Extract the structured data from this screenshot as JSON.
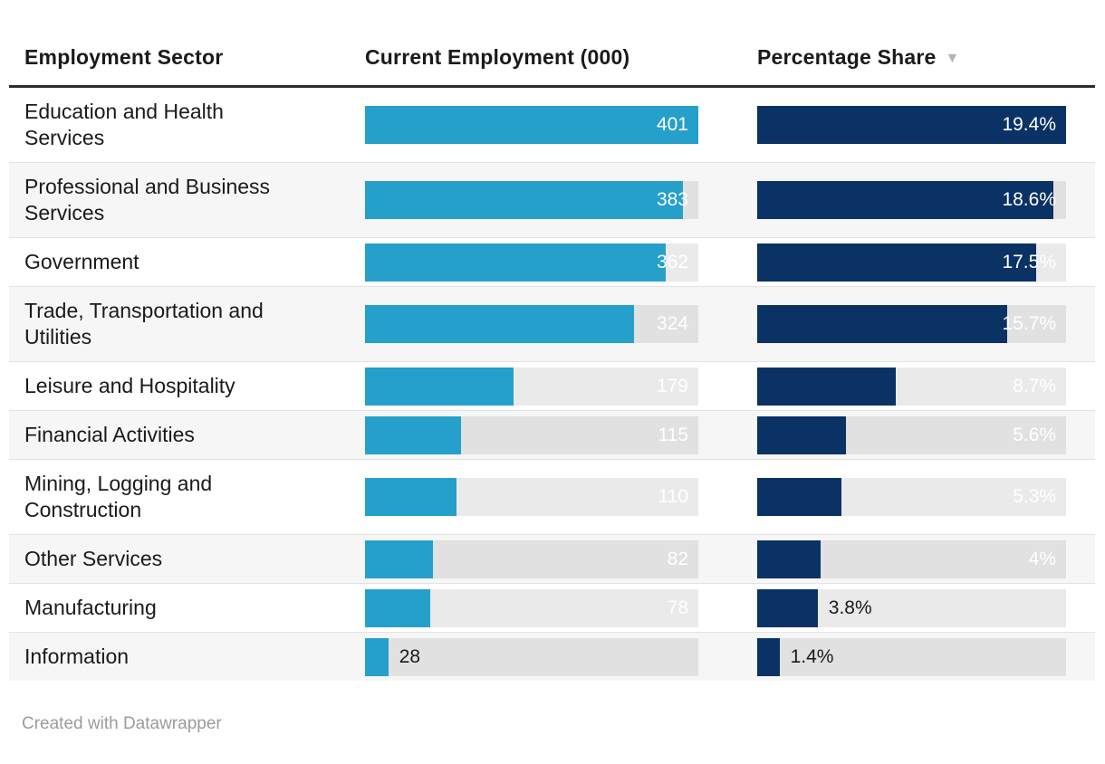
{
  "table": {
    "columns": [
      {
        "label": "Employment Sector"
      },
      {
        "label": "Current Employment (000)"
      },
      {
        "label": "Percentage Share",
        "sort_indicator": "▼",
        "sort_state": "descending"
      }
    ],
    "rows": [
      {
        "sector": "Education and Health Services",
        "employment": 401,
        "employment_label": "401",
        "share": 19.4,
        "share_label": "19.4%"
      },
      {
        "sector": "Professional and Business Services",
        "employment": 383,
        "employment_label": "383",
        "share": 18.6,
        "share_label": "18.6%"
      },
      {
        "sector": "Government",
        "employment": 362,
        "employment_label": "362",
        "share": 17.5,
        "share_label": "17.5%"
      },
      {
        "sector": "Trade, Transportation and Utilities",
        "employment": 324,
        "employment_label": "324",
        "share": 15.7,
        "share_label": "15.7%"
      },
      {
        "sector": "Leisure and Hospitality",
        "employment": 179,
        "employment_label": "179",
        "share": 8.7,
        "share_label": "8.7%"
      },
      {
        "sector": "Financial Activities",
        "employment": 115,
        "employment_label": "115",
        "share": 5.6,
        "share_label": "5.6%"
      },
      {
        "sector": "Mining, Logging and Construction",
        "employment": 110,
        "employment_label": "110",
        "share": 5.3,
        "share_label": "5.3%"
      },
      {
        "sector": "Other Services",
        "employment": 82,
        "employment_label": "82",
        "share": 4,
        "share_label": "4%"
      },
      {
        "sector": "Manufacturing",
        "employment": 78,
        "employment_label": "78",
        "share": 3.8,
        "share_label": "3.8%"
      },
      {
        "sector": "Information",
        "employment": 28,
        "employment_label": "28",
        "share": 1.4,
        "share_label": "1.4%"
      }
    ],
    "employment_max": 401,
    "share_max": 19.4
  },
  "colors": {
    "employment_bar": "#25a0ca",
    "share_bar": "#0b3264",
    "bar_track": "#e6e6e6",
    "row_stripe": "#f6f6f6",
    "header_rule": "#2d2d2d",
    "text": "#1a1a1a",
    "footer_text": "#9b9b9b"
  },
  "footer": {
    "credit": "Created with Datawrapper"
  },
  "chart_data": {
    "type": "table",
    "title": "",
    "categories": [
      "Education and Health Services",
      "Professional and Business Services",
      "Government",
      "Trade, Transportation and Utilities",
      "Leisure and Hospitality",
      "Financial Activities",
      "Mining, Logging and Construction",
      "Other Services",
      "Manufacturing",
      "Information"
    ],
    "series": [
      {
        "name": "Current Employment (000)",
        "values": [
          401,
          383,
          362,
          324,
          179,
          115,
          110,
          82,
          78,
          28
        ]
      },
      {
        "name": "Percentage Share",
        "unit": "%",
        "values": [
          19.4,
          18.6,
          17.5,
          15.7,
          8.7,
          5.6,
          5.3,
          4,
          3.8,
          1.4
        ]
      }
    ],
    "bar_scale": "each column scaled so its max value fills the track",
    "sorted_by": "Percentage Share, descending",
    "legend_position": "none",
    "grid": false
  }
}
